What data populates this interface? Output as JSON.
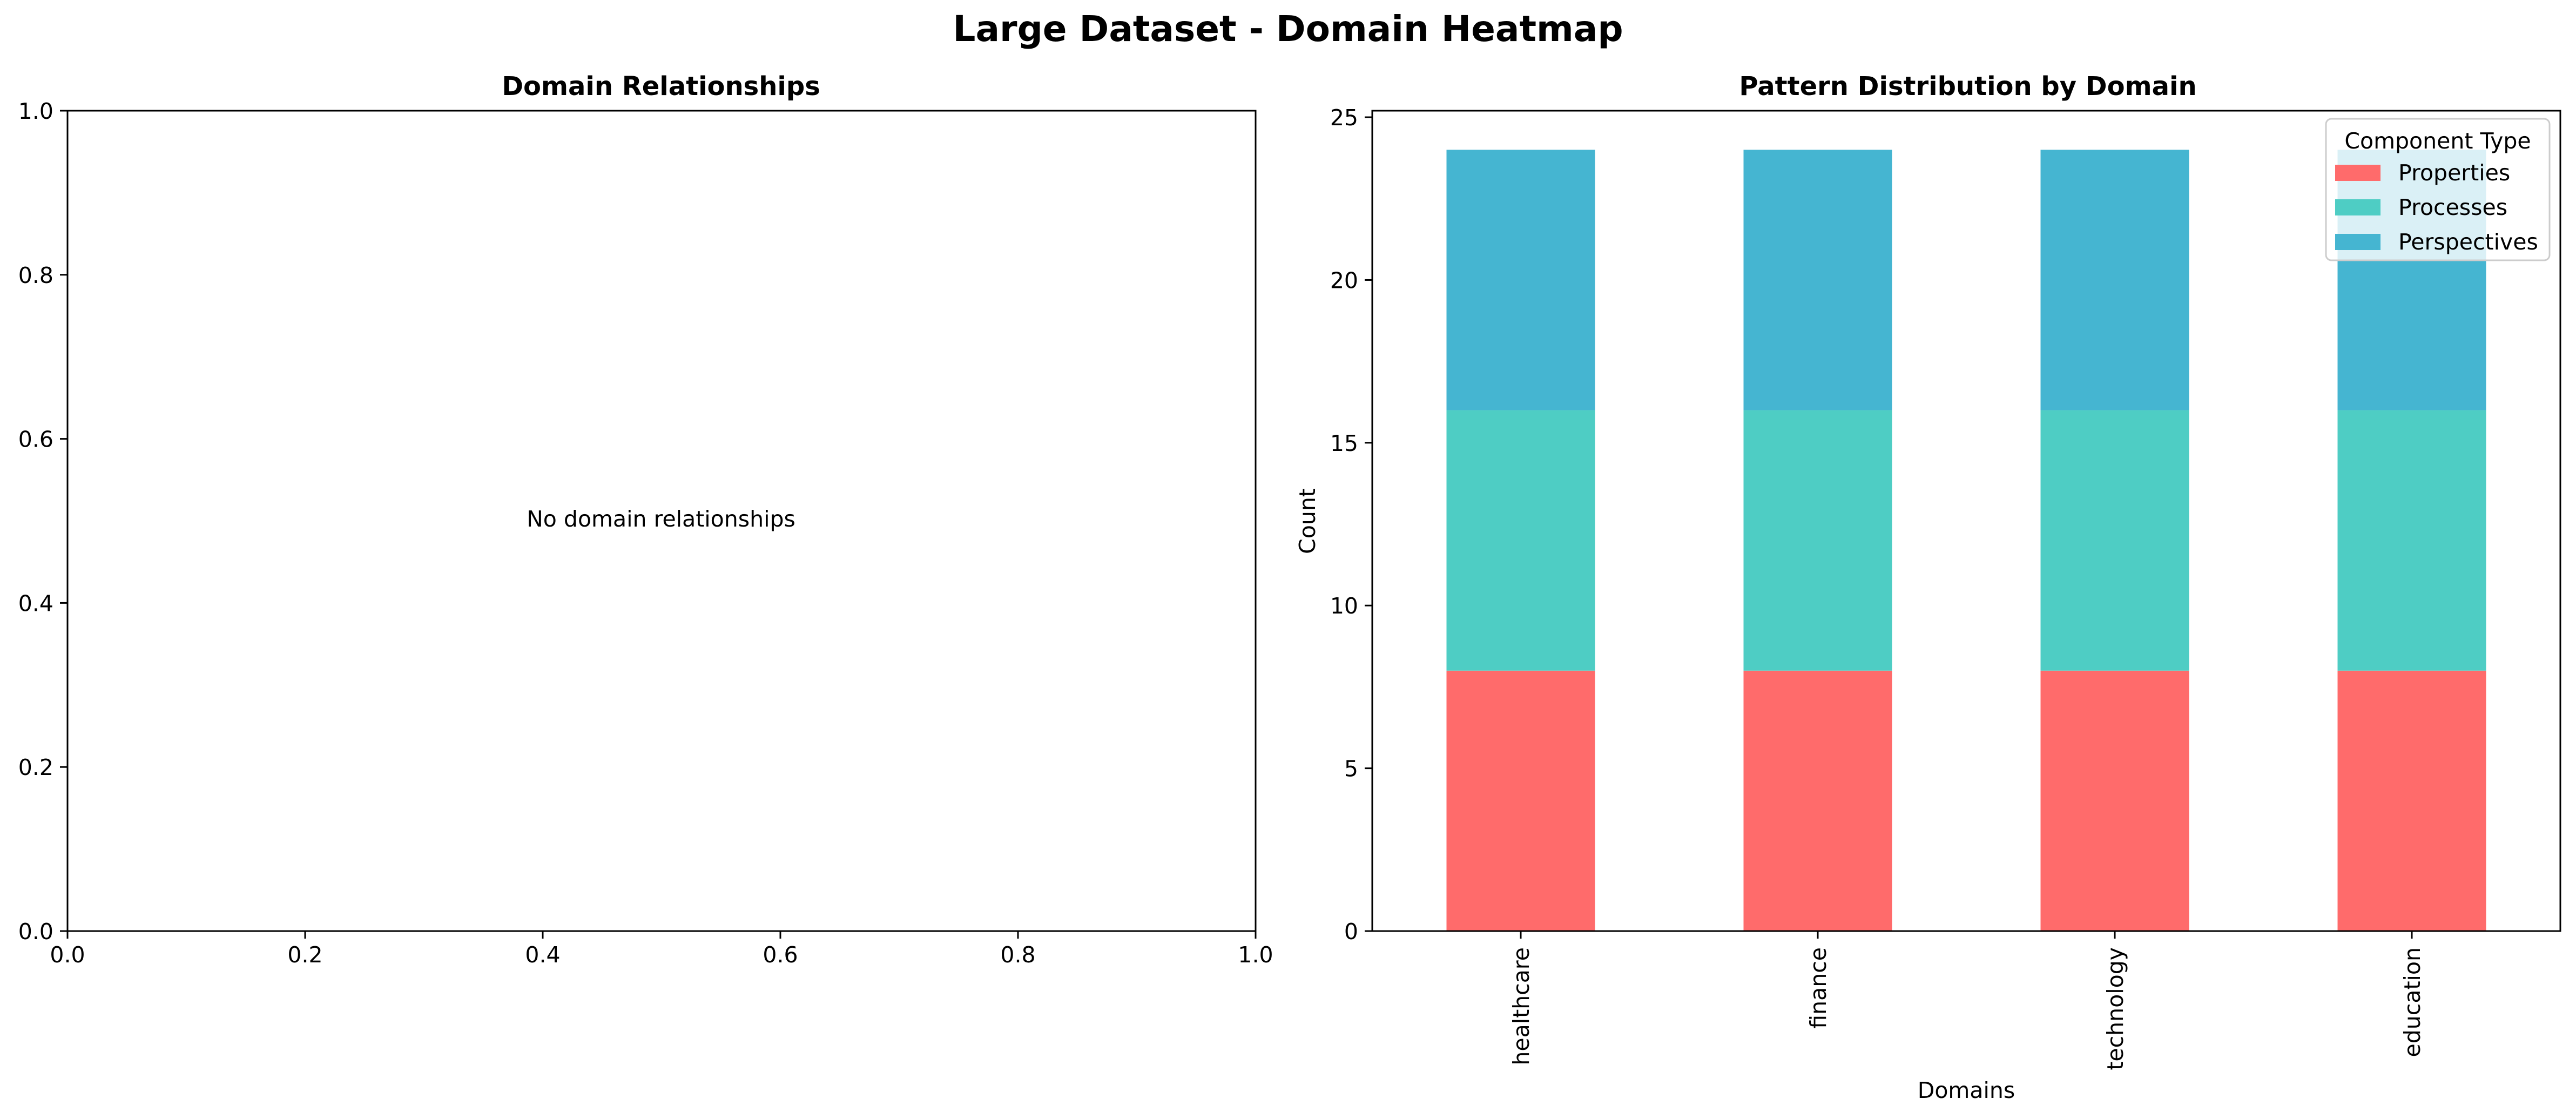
{
  "figure_title": "Large Dataset - Domain Heatmap",
  "chart_data": [
    {
      "type": "heatmap",
      "title": "Domain Relationships",
      "xlabel": "",
      "ylabel": "",
      "xlim": [
        0.0,
        1.0
      ],
      "ylim": [
        0.0,
        1.0
      ],
      "xticks": [
        "0.0",
        "0.2",
        "0.4",
        "0.6",
        "0.8",
        "1.0"
      ],
      "yticks": [
        "0.0",
        "0.2",
        "0.4",
        "0.6",
        "0.8",
        "1.0"
      ],
      "annotation": "No domain relationships",
      "grid": false
    },
    {
      "type": "bar",
      "stacked": true,
      "title": "Pattern Distribution by Domain",
      "xlabel": "Domains",
      "ylabel": "Count",
      "categories": [
        "healthcare",
        "finance",
        "technology",
        "education"
      ],
      "series": [
        {
          "name": "Properties",
          "values": [
            8,
            8,
            8,
            8
          ],
          "color": "#ff6b6b"
        },
        {
          "name": "Processes",
          "values": [
            8,
            8,
            8,
            8
          ],
          "color": "#4ecdc4"
        },
        {
          "name": "Perspectives",
          "values": [
            8,
            8,
            8,
            8
          ],
          "color": "#45b5d1"
        }
      ],
      "ylim": [
        0,
        25.2
      ],
      "yticks": [
        "0",
        "5",
        "10",
        "15",
        "20",
        "25"
      ],
      "legend_title": "Component Type",
      "legend_position": "top-right",
      "grid": false
    }
  ]
}
